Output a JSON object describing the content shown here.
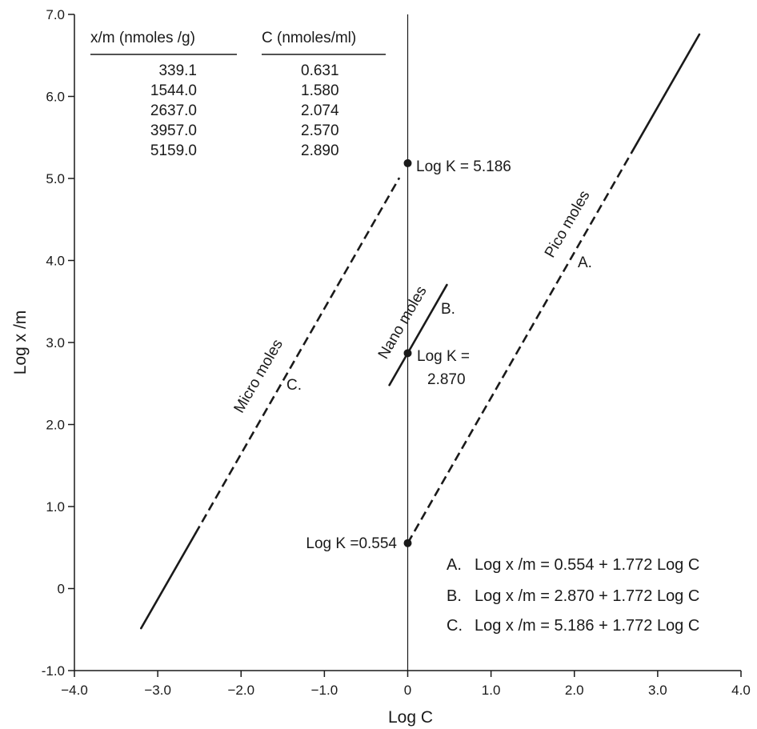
{
  "chart_data": {
    "type": "line",
    "xlabel": "Log C",
    "ylabel": "Log x /m",
    "xlim": [
      -4.0,
      4.0
    ],
    "ylim": [
      -1.0,
      7.0
    ],
    "xticks": [
      "−4.0",
      "−3.0",
      "−2.0",
      "−1.0",
      "0",
      "1.0",
      "2.0",
      "3.0",
      "4.0"
    ],
    "yticks": [
      "-1.0",
      "0",
      "1.0",
      "2.0",
      "3.0",
      "4.0",
      "5.0",
      "6.0",
      "7.0"
    ],
    "xtick_values": [
      -4,
      -3,
      -2,
      -1,
      0,
      1,
      2,
      3,
      4
    ],
    "ytick_values": [
      -1,
      0,
      1,
      2,
      3,
      4,
      5,
      6,
      7
    ],
    "series": [
      {
        "id": "A",
        "label": "A.",
        "rotated_label": "Pico moles",
        "intercept": 0.554,
        "slope": 1.772,
        "dashed_x": [
          0,
          2.7
        ],
        "solid_x": [
          2.7,
          3.5
        ]
      },
      {
        "id": "B",
        "label": "B.",
        "rotated_label": "Nano moles",
        "intercept": 2.87,
        "slope": 1.772,
        "dashed_x": [],
        "solid_x": [
          -0.22,
          0.47
        ]
      },
      {
        "id": "C",
        "label": "C.",
        "rotated_label": "Micro moles",
        "intercept": 5.186,
        "slope": 1.772,
        "dashed_x": [
          -2.55,
          -0.1
        ],
        "solid_x": [
          -3.2,
          -2.55
        ]
      }
    ],
    "intercept_points": [
      {
        "x": 0,
        "y": 5.186,
        "label": "Log K = 5.186"
      },
      {
        "x": 0,
        "y": 2.87,
        "label_line1": "Log K =",
        "label_line2": "2.870"
      },
      {
        "x": 0,
        "y": 0.554,
        "label": "Log K =0.554"
      }
    ],
    "table": {
      "headers": [
        "x/m (nmoles /g)",
        "C (nmoles/ml)"
      ],
      "rows": [
        [
          "339.1",
          "0.631"
        ],
        [
          "1544.0",
          "1.580"
        ],
        [
          "2637.0",
          "2.074"
        ],
        [
          "3957.0",
          "2.570"
        ],
        [
          "5159.0",
          "2.890"
        ]
      ]
    },
    "equations": [
      {
        "letter": "A.",
        "text": "Log x /m = 0.554 + 1.772  Log C"
      },
      {
        "letter": "B.",
        "text": "Log x /m = 2.870 + 1.772  Log C"
      },
      {
        "letter": "C.",
        "text": "Log x /m = 5.186 + 1.772  Log C"
      }
    ],
    "grid": false,
    "colors": {
      "ink": "#1a1a1a"
    }
  }
}
